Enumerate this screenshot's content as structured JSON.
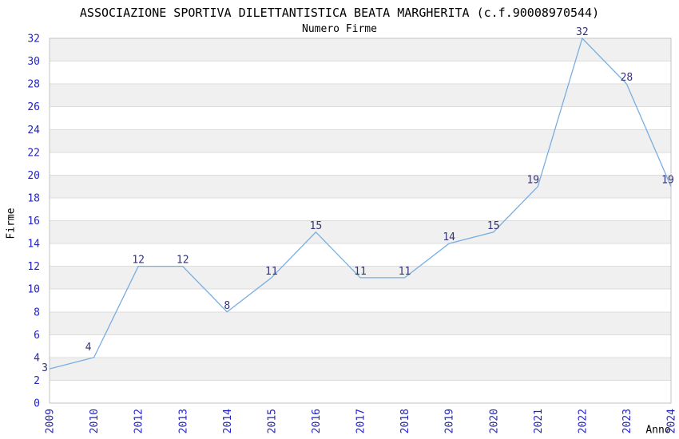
{
  "chart_data": {
    "type": "line",
    "title": "ASSOCIAZIONE SPORTIVA DILETTANTISTICA BEATA MARGHERITA (c.f.90008970544)",
    "subtitle": "Numero Firme",
    "xlabel": "Anno",
    "ylabel": "Firme",
    "categories": [
      "2009",
      "2010",
      "2012",
      "2013",
      "2014",
      "2015",
      "2016",
      "2017",
      "2018",
      "2019",
      "2020",
      "2021",
      "2022",
      "2023",
      "2024"
    ],
    "values": [
      3,
      4,
      12,
      12,
      8,
      11,
      15,
      11,
      11,
      14,
      15,
      19,
      32,
      28,
      19
    ],
    "ylim": [
      0,
      32
    ],
    "yticks": [
      0,
      2,
      4,
      6,
      8,
      10,
      12,
      14,
      16,
      18,
      20,
      22,
      24,
      26,
      28,
      30,
      32
    ],
    "grid": "horizontal-bands",
    "legend": "none",
    "colors": {
      "line": "#79ade1",
      "axis_tick": "#2222cc",
      "point_label": "#333377",
      "band_base": "#ffffff",
      "band_alt": "#f0f0f0",
      "gridline": "#dcdcdc",
      "border": "#c3c3c3",
      "text": "#000000",
      "background": "#ffffff"
    }
  }
}
